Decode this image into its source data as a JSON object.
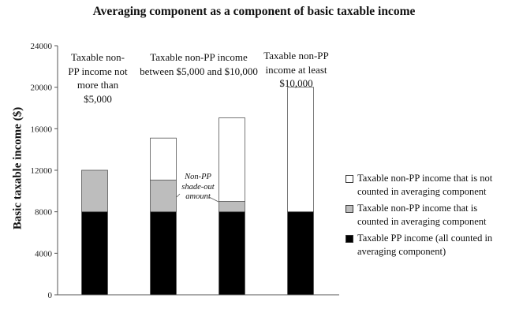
{
  "chart_data": {
    "type": "bar",
    "stacked": true,
    "title": "Averaging component as a component of basic taxable income",
    "ylabel": "Basic taxable income ($)",
    "xlabel": "",
    "ylim": [
      0,
      24000
    ],
    "yticks": [
      0,
      4000,
      8000,
      12000,
      16000,
      20000,
      24000
    ],
    "categories": [
      "",
      "",
      "",
      ""
    ],
    "series": [
      {
        "name": "Taxable PP income (all counted in averaging component)",
        "color": "#000000",
        "values": [
          8000,
          8000,
          8000,
          8000
        ]
      },
      {
        "name": "Taxable non-PP income that is counted in averaging component",
        "color": "#bdbdbd",
        "values": [
          4000,
          3050,
          1000,
          0
        ]
      },
      {
        "name": "Taxable non-PP income that is not counted in averaging component",
        "color": "#ffffff",
        "values": [
          0,
          4050,
          8050,
          12000
        ]
      }
    ],
    "legend": "right",
    "grid": false,
    "annotations": [
      {
        "text": "Taxable non-PP income not more than $5,000"
      },
      {
        "text": "Taxable non-PP income between $5,000 and $10,000"
      },
      {
        "text": "Taxable non-PP income at least $10,000"
      },
      {
        "text": "Non-PP shade-out amount"
      }
    ]
  }
}
